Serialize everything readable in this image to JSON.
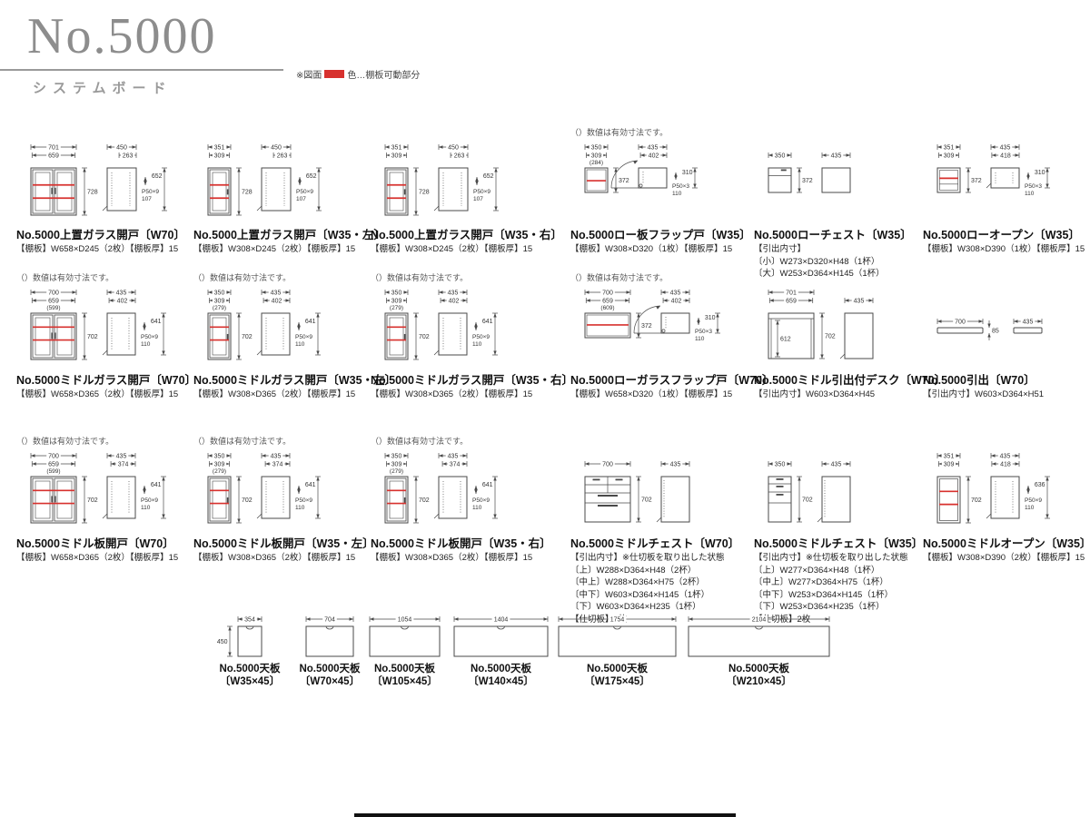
{
  "page": {
    "title": "No.5000",
    "subtitle": "システムボード",
    "legend_prefix": "※図面",
    "legend_suffix": "色…棚板可動部分",
    "legend_color": "#d7312e",
    "valid_note": "（）数値は有効寸法です。"
  },
  "products": [
    {
      "name": "No.5000上置ガラス開戸〔W70〕",
      "specs": [
        "【棚板】W658×D245（2枚）【棚板厚】15"
      ],
      "has_note": false,
      "type": "glass2",
      "front": {
        "d1": "701",
        "d2": "659",
        "par": "",
        "h": "728",
        "red": [
          0.36,
          0.64
        ]
      },
      "side": {
        "d1": "450",
        "d2": "263",
        "h": "652",
        "pitch": "P50×9",
        "pv": "107"
      }
    },
    {
      "name": "No.5000上置ガラス開戸〔W35・左〕",
      "specs": [
        "【棚板】W308×D245（2枚）【棚板厚】15"
      ],
      "has_note": false,
      "type": "glass1",
      "front": {
        "d1": "351",
        "d2": "309",
        "par": "",
        "h": "728",
        "red": [
          0.36,
          0.64
        ]
      },
      "side": {
        "d1": "450",
        "d2": "263",
        "h": "652",
        "pitch": "P50×9",
        "pv": "107"
      }
    },
    {
      "name": "No.5000上置ガラス開戸〔W35・右〕",
      "specs": [
        "【棚板】W308×D245（2枚）【棚板厚】15"
      ],
      "has_note": false,
      "type": "glass1",
      "front": {
        "d1": "351",
        "d2": "309",
        "par": "",
        "h": "728",
        "red": [
          0.36,
          0.64
        ]
      },
      "side": {
        "d1": "450",
        "d2": "263",
        "h": "652",
        "pitch": "P50×9",
        "pv": "107"
      }
    },
    {
      "name": "No.5000ロー板フラップ戸〔W35〕",
      "specs": [
        "【棚板】W308×D320（1枚）【棚板厚】15"
      ],
      "has_note": true,
      "type": "flap",
      "front": {
        "d1": "350",
        "d2": "309",
        "par": "(284)",
        "h": "372",
        "red": [
          0.52
        ]
      },
      "side": {
        "d1": "435",
        "d2": "402",
        "h": "310",
        "pitch": "P50×3",
        "pv": "110"
      }
    },
    {
      "name": "No.5000ローチェスト〔W35〕",
      "specs": [
        "【引出内寸】",
        "〔小〕W273×D320×H48（1杯）",
        "〔大〕W253×D364×H145（1杯）"
      ],
      "has_note": false,
      "type": "lowchest",
      "front": {
        "d1": "350",
        "h": "372"
      },
      "side": {
        "d1": "435"
      }
    },
    {
      "name": "No.5000ローオープン〔W35〕",
      "specs": [
        "【棚板】W308×D390（1枚）【棚板厚】15"
      ],
      "has_note": false,
      "type": "lowopen",
      "front": {
        "d1": "351",
        "d2": "309",
        "h": "372",
        "red": [
          0.42
        ]
      },
      "side": {
        "d1": "435",
        "d2": "418",
        "h": "310",
        "pitch": "P50×3",
        "pv": "110"
      }
    },
    {
      "name": "No.5000ミドルガラス開戸〔W70〕",
      "specs": [
        "【棚板】W658×D365（2枚）【棚板厚】15"
      ],
      "has_note": true,
      "type": "glass2",
      "front": {
        "d1": "700",
        "d2": "659",
        "par": "(599)",
        "h": "702",
        "red": [
          0.3,
          0.58
        ]
      },
      "side": {
        "d1": "435",
        "d2": "402",
        "h": "641",
        "pitch": "P50×9",
        "pv": "110"
      }
    },
    {
      "name": "No.5000ミドルガラス開戸〔W35・左〕",
      "specs": [
        "【棚板】W308×D365（2枚）【棚板厚】15"
      ],
      "has_note": true,
      "type": "glass1",
      "front": {
        "d1": "350",
        "d2": "309",
        "par": "(279)",
        "h": "702",
        "red": [
          0.3,
          0.58
        ]
      },
      "side": {
        "d1": "435",
        "d2": "402",
        "h": "641",
        "pitch": "P50×9",
        "pv": "110"
      }
    },
    {
      "name": "No.5000ミドルガラス開戸〔W35・右〕",
      "specs": [
        "【棚板】W308×D365（2枚）【棚板厚】15"
      ],
      "has_note": true,
      "type": "glass1",
      "front": {
        "d1": "350",
        "d2": "309",
        "par": "(279)",
        "h": "702",
        "red": [
          0.3,
          0.58
        ]
      },
      "side": {
        "d1": "435",
        "d2": "402",
        "h": "641",
        "pitch": "P50×9",
        "pv": "110"
      }
    },
    {
      "name": "No.5000ローガラスフラップ戸〔W70〕",
      "specs": [
        "【棚板】W658×D320（1枚）【棚板厚】15"
      ],
      "has_note": true,
      "type": "flap",
      "front": {
        "d1": "700",
        "d2": "659",
        "par": "(609)",
        "h": "372",
        "red": [
          0.48
        ]
      },
      "side": {
        "d1": "435",
        "d2": "402",
        "h": "310",
        "pitch": "P50×3",
        "pv": "110"
      }
    },
    {
      "name": "No.5000ミドル引出付デスク〔W70〕",
      "specs": [
        "【引出内寸】W603×D364×H45"
      ],
      "has_note": false,
      "type": "desk",
      "front": {
        "d1": "701",
        "d2": "659",
        "h": "702",
        "fi": "612"
      },
      "side": {
        "d1": "435"
      }
    },
    {
      "name": "No.5000引出〔W70〕",
      "specs": [
        "【引出内寸】W603×D364×H51"
      ],
      "has_note": false,
      "type": "drawer",
      "front": {
        "d1": "700",
        "h": "85"
      },
      "side": {
        "d1": "435"
      }
    },
    {
      "name": "No.5000ミドル板開戸〔W70〕",
      "specs": [
        "【棚板】W658×D365（2枚）【棚板厚】15"
      ],
      "has_note": true,
      "type": "panel2",
      "front": {
        "d1": "700",
        "d2": "659",
        "par": "(599)",
        "h": "702",
        "red": [
          0.3,
          0.58
        ]
      },
      "side": {
        "d1": "435",
        "d2": "374",
        "h": "641",
        "pitch": "P50×9",
        "pv": "110"
      }
    },
    {
      "name": "No.5000ミドル板開戸〔W35・左〕",
      "specs": [
        "【棚板】W308×D365（2枚）【棚板厚】15"
      ],
      "has_note": true,
      "type": "panel1",
      "front": {
        "d1": "350",
        "d2": "309",
        "par": "(279)",
        "h": "702",
        "red": [
          0.3,
          0.58
        ]
      },
      "side": {
        "d1": "435",
        "d2": "374",
        "h": "641",
        "pitch": "P50×9",
        "pv": "110"
      }
    },
    {
      "name": "No.5000ミドル板開戸〔W35・右〕",
      "specs": [
        "【棚板】W308×D365（2枚）【棚板厚】15"
      ],
      "has_note": true,
      "type": "panel1",
      "front": {
        "d1": "350",
        "d2": "309",
        "par": "(279)",
        "h": "702",
        "red": [
          0.3,
          0.58
        ]
      },
      "side": {
        "d1": "435",
        "d2": "374",
        "h": "641",
        "pitch": "P50×9",
        "pv": "110"
      }
    },
    {
      "name": "No.5000ミドルチェスト〔W70〕",
      "specs": [
        "【引出内寸】※仕切板を取り出した状態",
        "〔上〕W288×D364×H48（2杯）",
        "〔中上〕W288×D364×H75（2杯）",
        "〔中下〕W603×D364×H145（1杯）",
        "〔下〕W603×D364×H235（1杯）",
        "【仕切板】3枚"
      ],
      "has_note": false,
      "type": "chest70",
      "front": {
        "d1": "700",
        "h": "702"
      },
      "side": {
        "d1": "435"
      }
    },
    {
      "name": "No.5000ミドルチェスト〔W35〕",
      "specs": [
        "【引出内寸】※仕切板を取り出した状態",
        "〔上〕W277×D364×H48（1杯）",
        "〔中上〕W277×D364×H75（1杯）",
        "〔中下〕W253×D364×H145（1杯）",
        "〔下〕W253×D364×H235（1杯）",
        "【仕切板】2枚"
      ],
      "has_note": false,
      "type": "chest35",
      "front": {
        "d1": "350",
        "h": "702"
      },
      "side": {
        "d1": "435"
      }
    },
    {
      "name": "No.5000ミドルオープン〔W35〕",
      "specs": [
        "【棚板】W308×D390（2枚）【棚板厚】15"
      ],
      "has_note": false,
      "type": "midopen",
      "front": {
        "d1": "351",
        "d2": "309",
        "h": "702",
        "red": [
          0.32,
          0.6
        ]
      },
      "side": {
        "d1": "435",
        "d2": "418",
        "h": "636",
        "pitch": "P50×9",
        "pv": "110"
      }
    }
  ],
  "boards": [
    {
      "name": "No.5000天板",
      "size": "〔W35×45〕",
      "dim": "354",
      "depth": "450"
    },
    {
      "name": "No.5000天板",
      "size": "〔W70×45〕",
      "dim": "704",
      "depth": ""
    },
    {
      "name": "No.5000天板",
      "size": "〔W105×45〕",
      "dim": "1054",
      "depth": ""
    },
    {
      "name": "No.5000天板",
      "size": "〔W140×45〕",
      "dim": "1404",
      "depth": ""
    },
    {
      "name": "No.5000天板",
      "size": "〔W175×45〕",
      "dim": "1754",
      "depth": ""
    },
    {
      "name": "No.5000天板",
      "size": "〔W210×45〕",
      "dim": "2104",
      "depth": ""
    }
  ]
}
